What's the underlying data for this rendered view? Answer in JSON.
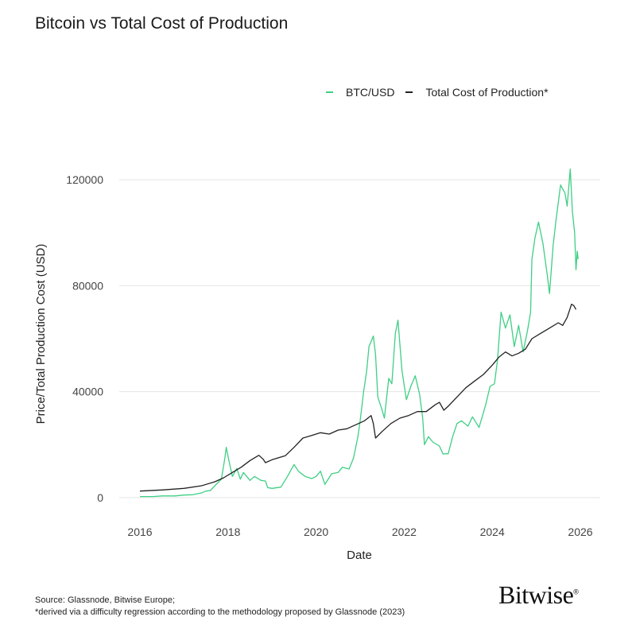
{
  "chart_data": {
    "type": "line",
    "title": "Bitcoin vs Total Cost of Production",
    "xlabel": "Date",
    "ylabel": "Price/Total Production Cost (USD)",
    "xlim": [
      2015.6,
      2026.4
    ],
    "ylim": [
      -10000,
      140000
    ],
    "x_ticks": [
      "2016",
      "2018",
      "2020",
      "2022",
      "2024",
      "2026"
    ],
    "y_ticks": [
      "0",
      "40000",
      "80000",
      "120000"
    ],
    "grid": "horizontal",
    "legend_placement": "top-right",
    "series": [
      {
        "name": "BTC/USD",
        "color": "#3ecf84",
        "points": [
          [
            2016.0,
            430
          ],
          [
            2016.3,
            420
          ],
          [
            2016.5,
            650
          ],
          [
            2016.8,
            650
          ],
          [
            2017.0,
            1000
          ],
          [
            2017.2,
            1100
          ],
          [
            2017.4,
            1800
          ],
          [
            2017.5,
            2500
          ],
          [
            2017.6,
            2700
          ],
          [
            2017.7,
            4500
          ],
          [
            2017.85,
            7000
          ],
          [
            2017.93,
            15000
          ],
          [
            2017.96,
            19000
          ],
          [
            2018.02,
            14000
          ],
          [
            2018.1,
            8000
          ],
          [
            2018.2,
            11000
          ],
          [
            2018.28,
            7000
          ],
          [
            2018.35,
            9500
          ],
          [
            2018.5,
            6500
          ],
          [
            2018.6,
            8000
          ],
          [
            2018.75,
            6500
          ],
          [
            2018.85,
            6300
          ],
          [
            2018.9,
            3800
          ],
          [
            2019.0,
            3500
          ],
          [
            2019.2,
            4000
          ],
          [
            2019.35,
            8000
          ],
          [
            2019.45,
            11000
          ],
          [
            2019.5,
            12500
          ],
          [
            2019.6,
            10000
          ],
          [
            2019.75,
            8000
          ],
          [
            2019.9,
            7200
          ],
          [
            2020.0,
            8000
          ],
          [
            2020.1,
            10000
          ],
          [
            2020.2,
            5000
          ],
          [
            2020.35,
            9000
          ],
          [
            2020.5,
            9500
          ],
          [
            2020.6,
            11500
          ],
          [
            2020.75,
            10800
          ],
          [
            2020.85,
            15000
          ],
          [
            2020.95,
            23000
          ],
          [
            2021.0,
            29000
          ],
          [
            2021.08,
            40000
          ],
          [
            2021.15,
            48000
          ],
          [
            2021.2,
            57000
          ],
          [
            2021.3,
            61000
          ],
          [
            2021.35,
            54000
          ],
          [
            2021.4,
            38000
          ],
          [
            2021.5,
            33000
          ],
          [
            2021.55,
            30000
          ],
          [
            2021.65,
            45000
          ],
          [
            2021.72,
            43000
          ],
          [
            2021.8,
            62000
          ],
          [
            2021.86,
            67000
          ],
          [
            2021.95,
            48000
          ],
          [
            2022.05,
            37000
          ],
          [
            2022.15,
            42000
          ],
          [
            2022.25,
            46000
          ],
          [
            2022.35,
            39000
          ],
          [
            2022.42,
            30000
          ],
          [
            2022.46,
            20000
          ],
          [
            2022.55,
            23000
          ],
          [
            2022.65,
            21000
          ],
          [
            2022.8,
            19500
          ],
          [
            2022.88,
            16500
          ],
          [
            2023.0,
            16600
          ],
          [
            2023.1,
            23000
          ],
          [
            2023.2,
            28000
          ],
          [
            2023.3,
            29000
          ],
          [
            2023.45,
            27000
          ],
          [
            2023.55,
            30500
          ],
          [
            2023.7,
            26500
          ],
          [
            2023.85,
            35000
          ],
          [
            2023.95,
            42000
          ],
          [
            2024.05,
            43000
          ],
          [
            2024.12,
            52000
          ],
          [
            2024.2,
            70000
          ],
          [
            2024.3,
            64000
          ],
          [
            2024.4,
            69000
          ],
          [
            2024.5,
            57000
          ],
          [
            2024.6,
            65000
          ],
          [
            2024.7,
            55000
          ],
          [
            2024.8,
            63000
          ],
          [
            2024.87,
            70000
          ],
          [
            2024.9,
            90000
          ],
          [
            2024.97,
            98000
          ],
          [
            2025.05,
            104000
          ],
          [
            2025.15,
            96000
          ],
          [
            2025.25,
            84000
          ],
          [
            2025.3,
            77000
          ],
          [
            2025.38,
            95000
          ],
          [
            2025.45,
            105000
          ],
          [
            2025.55,
            118000
          ],
          [
            2025.65,
            115000
          ],
          [
            2025.7,
            110000
          ],
          [
            2025.77,
            124000
          ],
          [
            2025.82,
            108000
          ],
          [
            2025.87,
            100000
          ],
          [
            2025.9,
            86000
          ],
          [
            2025.93,
            93000
          ],
          [
            2025.95,
            90000
          ]
        ]
      },
      {
        "name": "Total Cost of Production*",
        "color": "#222222",
        "points": [
          [
            2016.0,
            2500
          ],
          [
            2016.5,
            2900
          ],
          [
            2017.0,
            3500
          ],
          [
            2017.4,
            4500
          ],
          [
            2017.7,
            6000
          ],
          [
            2017.9,
            7500
          ],
          [
            2018.1,
            9500
          ],
          [
            2018.3,
            11500
          ],
          [
            2018.5,
            14000
          ],
          [
            2018.7,
            16000
          ],
          [
            2018.8,
            14500
          ],
          [
            2018.85,
            13200
          ],
          [
            2019.0,
            14300
          ],
          [
            2019.3,
            15800
          ],
          [
            2019.5,
            19000
          ],
          [
            2019.7,
            22500
          ],
          [
            2019.9,
            23500
          ],
          [
            2020.1,
            24500
          ],
          [
            2020.3,
            24000
          ],
          [
            2020.5,
            25500
          ],
          [
            2020.7,
            26000
          ],
          [
            2020.9,
            27500
          ],
          [
            2021.1,
            29000
          ],
          [
            2021.25,
            31000
          ],
          [
            2021.3,
            28000
          ],
          [
            2021.35,
            22500
          ],
          [
            2021.5,
            25000
          ],
          [
            2021.7,
            28000
          ],
          [
            2021.9,
            30000
          ],
          [
            2022.1,
            31000
          ],
          [
            2022.3,
            32500
          ],
          [
            2022.5,
            32500
          ],
          [
            2022.7,
            35000
          ],
          [
            2022.8,
            36000
          ],
          [
            2022.9,
            33000
          ],
          [
            2023.0,
            34500
          ],
          [
            2023.2,
            38000
          ],
          [
            2023.4,
            41500
          ],
          [
            2023.6,
            44000
          ],
          [
            2023.8,
            46500
          ],
          [
            2024.0,
            50000
          ],
          [
            2024.15,
            53000
          ],
          [
            2024.3,
            55000
          ],
          [
            2024.45,
            53500
          ],
          [
            2024.6,
            54500
          ],
          [
            2024.75,
            56000
          ],
          [
            2024.9,
            60000
          ],
          [
            2025.1,
            62000
          ],
          [
            2025.3,
            64000
          ],
          [
            2025.5,
            66000
          ],
          [
            2025.6,
            65000
          ],
          [
            2025.7,
            68000
          ],
          [
            2025.8,
            73000
          ],
          [
            2025.85,
            72500
          ],
          [
            2025.9,
            71000
          ]
        ]
      }
    ]
  },
  "footer": {
    "source": "Source: Glassnode, Bitwise Europe;",
    "note": "*derived via a difficulty regression according to the methodology proposed by Glassnode (2023)",
    "logo": "Bitwise"
  }
}
